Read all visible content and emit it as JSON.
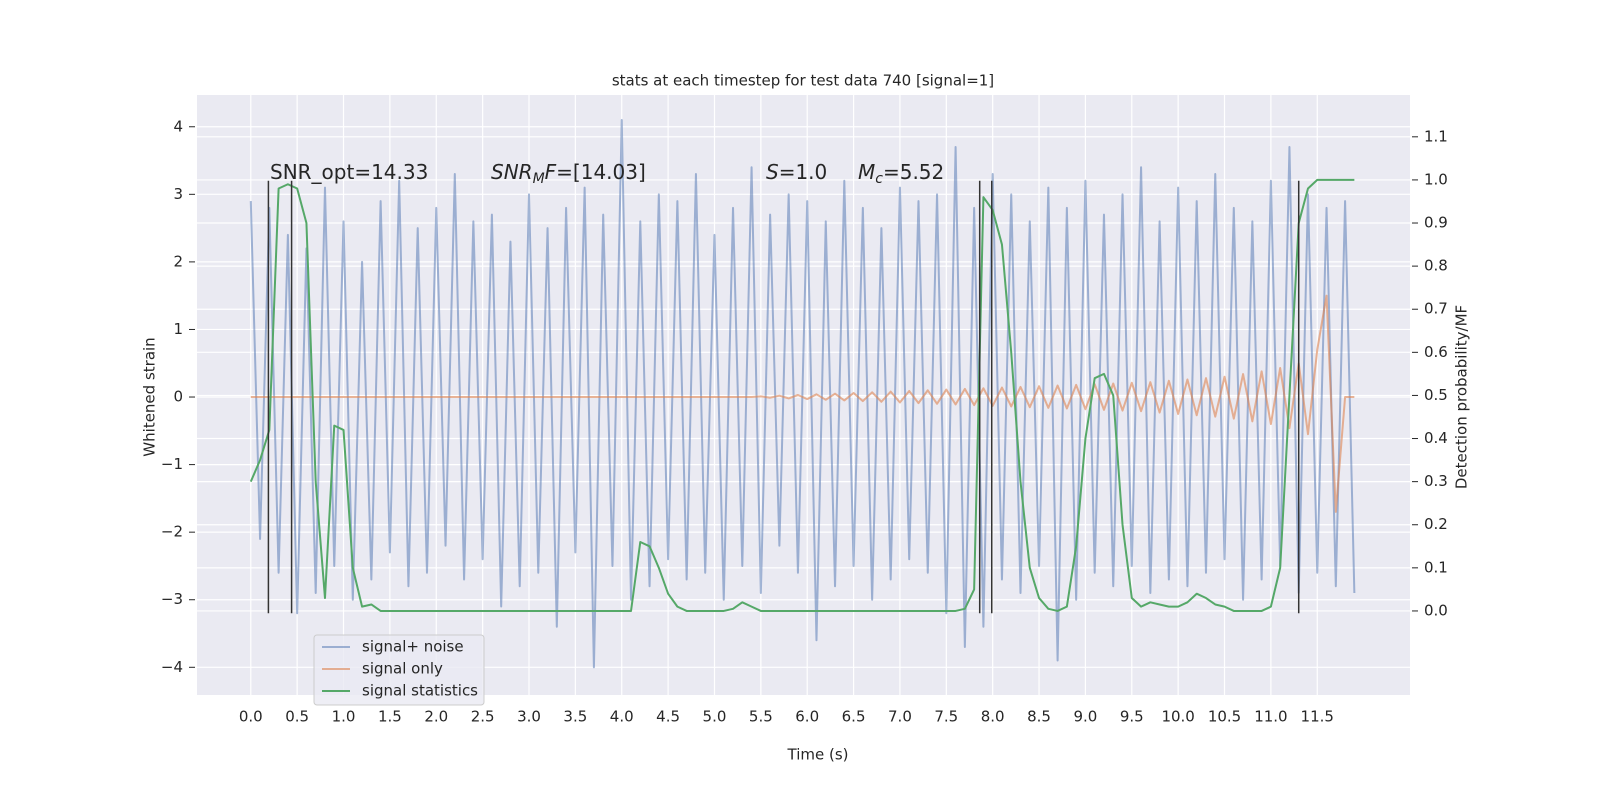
{
  "chart_data": {
    "type": "line",
    "title": "stats at each timestep for test data 740 [signal=1]",
    "x_label": "Time (s)",
    "y_label": "Whitened strain",
    "y2_label": "Detection probability/MF",
    "x": [
      0,
      0.1,
      0.2,
      0.3,
      0.4,
      0.5,
      0.6,
      0.7,
      0.8,
      0.9,
      1.0,
      1.1,
      1.2,
      1.3,
      1.4,
      1.5,
      1.6,
      1.7,
      1.8,
      1.9,
      2.0,
      2.1,
      2.2,
      2.3,
      2.4,
      2.5,
      2.6,
      2.7,
      2.8,
      2.9,
      3.0,
      3.1,
      3.2,
      3.3,
      3.4,
      3.5,
      3.6,
      3.7,
      3.8,
      3.9,
      4.0,
      4.1,
      4.2,
      4.3,
      4.4,
      4.5,
      4.6,
      4.7,
      4.8,
      4.9,
      5.0,
      5.1,
      5.2,
      5.3,
      5.4,
      5.5,
      5.6,
      5.7,
      5.8,
      5.9,
      6.0,
      6.1,
      6.2,
      6.3,
      6.4,
      6.5,
      6.6,
      6.7,
      6.8,
      6.9,
      7.0,
      7.1,
      7.2,
      7.3,
      7.4,
      7.5,
      7.6,
      7.7,
      7.8,
      7.9,
      8.0,
      8.1,
      8.2,
      8.3,
      8.4,
      8.5,
      8.6,
      8.7,
      8.8,
      8.9,
      9.0,
      9.1,
      9.2,
      9.3,
      9.4,
      9.5,
      9.6,
      9.7,
      9.8,
      9.9,
      10.0,
      10.1,
      10.2,
      10.3,
      10.4,
      10.5,
      10.6,
      10.7,
      10.8,
      10.9,
      11.0,
      11.1,
      11.2,
      11.3,
      11.4,
      11.5,
      11.6,
      11.7,
      11.8,
      11.9
    ],
    "series": [
      {
        "name": "signal+ noise",
        "color": "#4c72b0",
        "values": [
          2.9,
          -2.1,
          2.8,
          -2.6,
          2.4,
          -3.2,
          2.2,
          -2.9,
          3.1,
          -2.5,
          2.6,
          -3.0,
          2.0,
          -2.7,
          2.9,
          -2.3,
          3.2,
          -2.8,
          2.5,
          -2.6,
          2.8,
          -2.2,
          3.3,
          -2.7,
          2.6,
          -2.4,
          2.7,
          -3.1,
          2.3,
          -2.8,
          3.0,
          -2.6,
          2.5,
          -3.4,
          2.8,
          -2.3,
          3.1,
          -4.0,
          2.7,
          -2.5,
          4.1,
          -3.0,
          2.6,
          -2.8,
          3.0,
          -2.4,
          2.9,
          -2.7,
          3.3,
          -2.6,
          2.4,
          -3.0,
          2.8,
          -2.5,
          3.4,
          -2.9,
          2.7,
          -2.2,
          3.0,
          -2.6,
          2.9,
          -3.6,
          2.6,
          -2.8,
          3.2,
          -2.5,
          2.8,
          -3.0,
          2.5,
          -2.7,
          3.1,
          -2.4,
          2.9,
          -2.6,
          3.0,
          -3.2,
          3.7,
          -3.7,
          2.8,
          -3.4,
          3.3,
          -2.7,
          3.0,
          -2.9,
          2.6,
          -2.5,
          3.1,
          -3.9,
          2.8,
          -3.0,
          3.2,
          -2.6,
          2.7,
          -2.8,
          3.0,
          -2.5,
          3.4,
          -2.9,
          2.6,
          -2.7,
          3.1,
          -2.8,
          2.9,
          -2.6,
          3.3,
          -2.4,
          2.8,
          -3.0,
          2.6,
          -2.7,
          3.2,
          -2.5,
          3.7,
          -2.9,
          3.0,
          -2.6,
          2.8,
          -2.8,
          2.9,
          -2.9
        ]
      },
      {
        "name": "signal only",
        "color": "#dd8452",
        "values": [
          0,
          0,
          0,
          0,
          0,
          0,
          0,
          0,
          0,
          0,
          0,
          0,
          0,
          0,
          0,
          0,
          0,
          0,
          0,
          0,
          0,
          0,
          0,
          0,
          0,
          0,
          0,
          0,
          0,
          0,
          0,
          0,
          0,
          0,
          0,
          0,
          0,
          0,
          0,
          0,
          0,
          0,
          0,
          0,
          0,
          0,
          0,
          0,
          0,
          0,
          0,
          0,
          0,
          0,
          0,
          0.01,
          -0.01,
          0.02,
          -0.02,
          0.03,
          -0.03,
          0.04,
          -0.04,
          0.05,
          -0.05,
          0.06,
          -0.06,
          0.07,
          -0.07,
          0.08,
          -0.08,
          0.09,
          -0.09,
          0.1,
          -0.1,
          0.11,
          -0.11,
          0.12,
          -0.12,
          0.13,
          -0.13,
          0.14,
          -0.14,
          0.15,
          -0.15,
          0.16,
          -0.16,
          0.17,
          -0.17,
          0.18,
          -0.18,
          0.19,
          -0.19,
          0.2,
          -0.2,
          0.21,
          -0.21,
          0.22,
          -0.23,
          0.24,
          -0.25,
          0.26,
          -0.27,
          0.28,
          -0.29,
          0.3,
          -0.32,
          0.34,
          -0.36,
          0.38,
          -0.4,
          0.43,
          -0.46,
          0.5,
          -0.55,
          0.7,
          1.5,
          -1.7,
          0,
          0
        ]
      },
      {
        "name": "signal statistics",
        "color": "#55a868",
        "axis": "y2",
        "values": [
          0.3,
          0.35,
          0.42,
          0.98,
          0.99,
          0.98,
          0.9,
          0.3,
          0.03,
          0.43,
          0.42,
          0.1,
          0.01,
          0.015,
          0,
          0,
          0,
          0,
          0,
          0,
          0,
          0,
          0,
          0,
          0,
          0,
          0,
          0,
          0,
          0,
          0,
          0,
          0,
          0,
          0,
          0,
          0,
          0,
          0,
          0,
          0,
          0,
          0.16,
          0.15,
          0.1,
          0.04,
          0.01,
          0,
          0,
          0,
          0,
          0,
          0.005,
          0.02,
          0.01,
          0,
          0,
          0,
          0,
          0,
          0,
          0,
          0,
          0,
          0,
          0,
          0,
          0,
          0,
          0,
          0,
          0,
          0,
          0,
          0,
          0,
          0,
          0.005,
          0.05,
          0.96,
          0.93,
          0.85,
          0.6,
          0.3,
          0.1,
          0.03,
          0.005,
          0,
          0.01,
          0.15,
          0.4,
          0.54,
          0.55,
          0.5,
          0.2,
          0.03,
          0.01,
          0.02,
          0.015,
          0.01,
          0.01,
          0.02,
          0.04,
          0.03,
          0.015,
          0.01,
          0,
          0,
          0,
          0,
          0.01,
          0.1,
          0.5,
          0.9,
          0.98,
          1,
          1,
          1,
          1,
          1
        ]
      }
    ],
    "vlines": {
      "x": [
        0.19,
        0.44,
        7.86,
        7.99,
        11.3
      ],
      "ymin": -3.2,
      "ymax": 3.2,
      "color": "#333333"
    },
    "annotations": [
      [
        {
          "text": "SNR_opt=14.33",
          "style": "normal"
        }
      ],
      [
        {
          "text": "SNR",
          "style": "italic"
        },
        {
          "text": "M",
          "style": "sub"
        },
        {
          "text": "F",
          "style": "italic"
        },
        {
          "text": "=[14.03]",
          "style": "normal"
        }
      ],
      [
        {
          "text": "S",
          "style": "italic"
        },
        {
          "text": "=1.0",
          "style": "normal"
        }
      ],
      [
        {
          "text": "M",
          "style": "italic"
        },
        {
          "text": "c",
          "style": "sub"
        },
        {
          "text": "=5.52",
          "style": "normal"
        }
      ]
    ],
    "xlim": [
      -0.58,
      12.5
    ],
    "xticks": [
      {
        "value": 0,
        "label": "0.0"
      },
      0.5,
      {
        "value": 1,
        "label": "1.0"
      },
      1.5,
      {
        "value": 2,
        "label": "2.0"
      },
      2.5,
      {
        "value": 3,
        "label": "3.0"
      },
      3.5,
      {
        "value": 4,
        "label": "4.0"
      },
      4.5,
      {
        "value": 5,
        "label": "5.0"
      },
      5.5,
      {
        "value": 6,
        "label": "6.0"
      },
      6.5,
      {
        "value": 7,
        "label": "7.0"
      },
      7.5,
      {
        "value": 8,
        "label": "8.0"
      },
      8.5,
      {
        "value": 9,
        "label": "9.0"
      },
      9.5,
      {
        "value": 10,
        "label": "10.0"
      },
      10.5,
      {
        "value": 11,
        "label": "11.0"
      },
      11.5
    ],
    "ylim": [
      -4.41,
      4.47
    ],
    "yticks": [
      {
        "value": -4,
        "label": "−4"
      },
      {
        "value": -3,
        "label": "−3"
      },
      {
        "value": -2,
        "label": "−2"
      },
      {
        "value": -1,
        "label": "−1"
      },
      0,
      1,
      2,
      3,
      4
    ],
    "y2lim": [
      -0.195,
      1.197
    ],
    "y2ticks": [
      {
        "value": 0,
        "label": "0.0"
      },
      0.1,
      0.2,
      0.3,
      0.4,
      0.5,
      0.6,
      0.7,
      0.8,
      0.9,
      {
        "value": 1,
        "label": "1.0"
      },
      1.1
    ],
    "grid": true,
    "legend": "lower left"
  }
}
